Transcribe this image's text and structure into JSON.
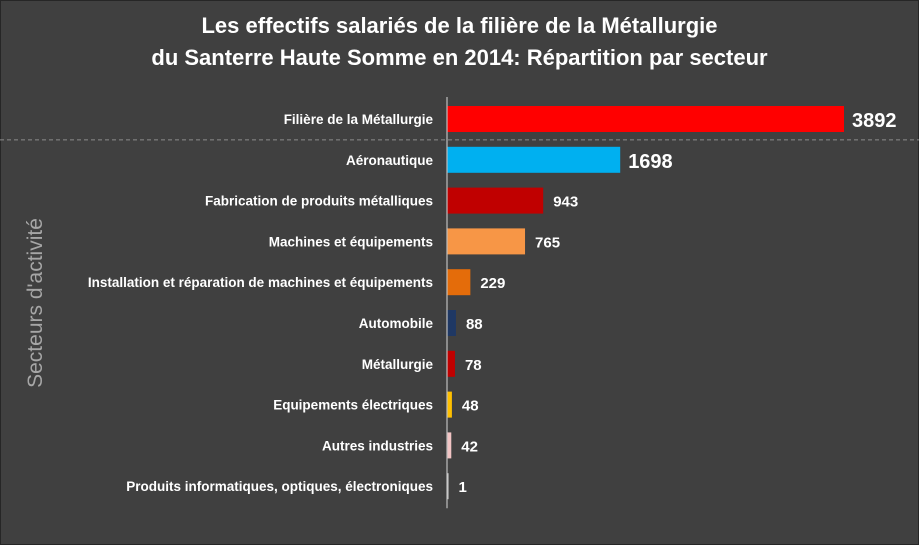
{
  "chart_data": {
    "type": "bar",
    "orientation": "horizontal",
    "title_lines": [
      "Les effectifs salariés de la filière de la Métallurgie",
      "du Santerre Haute Somme en 2014: Répartition par secteur"
    ],
    "ylabel": "Secteurs d'activité",
    "xlabel": "",
    "xlim": [
      0,
      3892
    ],
    "grid": false,
    "legend": "none",
    "categories": [
      "Filière de la Métallurgie",
      "Aéronautique",
      "Fabrication de produits métalliques",
      "Machines et équipements",
      "Installation et réparation de machines et équipements",
      "Automobile",
      "Métallurgie",
      "Equipements électriques",
      "Autres industries",
      "Produits informatiques, optiques, électroniques"
    ],
    "values": [
      3892,
      1698,
      943,
      765,
      229,
      88,
      78,
      48,
      42,
      1
    ],
    "value_labels": [
      "3892",
      "1698",
      "943",
      "765",
      "229",
      "88",
      "78",
      "48",
      "42",
      "1"
    ],
    "colors": [
      "#ff0000",
      "#00b0f0",
      "#c00000",
      "#f79646",
      "#e46c0a",
      "#1f3864",
      "#c00000",
      "#ffc000",
      "#f2c4c4",
      "#d9d9d9"
    ],
    "separator_after_index": 0
  }
}
